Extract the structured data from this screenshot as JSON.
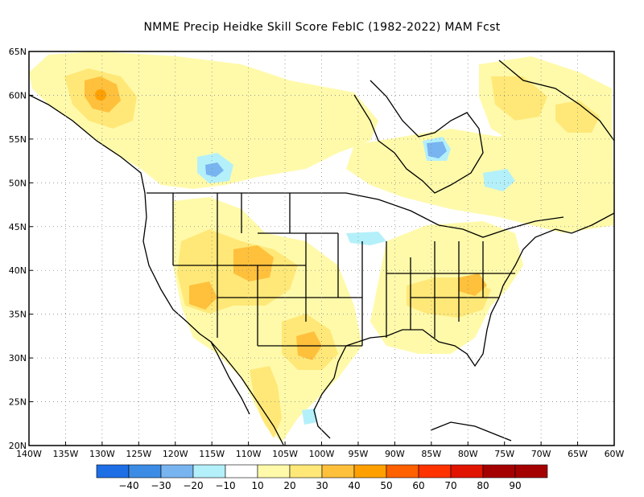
{
  "title": "NMME Precip Heidke Skill Score FebIC (1982-2022) MAM Fcst",
  "map": {
    "lon_range": [
      -140,
      -60
    ],
    "lat_range": [
      20,
      65
    ],
    "lon_ticks": [
      "140W",
      "135W",
      "130W",
      "125W",
      "120W",
      "115W",
      "110W",
      "105W",
      "100W",
      "95W",
      "90W",
      "85W",
      "80W",
      "75W",
      "70W",
      "65W",
      "60W"
    ],
    "lat_ticks": [
      "65N",
      "60N",
      "55N",
      "50N",
      "45N",
      "40N",
      "35N",
      "30N",
      "25N",
      "20N"
    ],
    "grid": "dotted"
  },
  "colorbar": {
    "labels": [
      "-40",
      "-30",
      "-20",
      "-10",
      "10",
      "20",
      "30",
      "40",
      "50",
      "60",
      "70",
      "80",
      "90"
    ],
    "colors": [
      "#1e6ee6",
      "#3c8ce6",
      "#78b4f0",
      "#b4f0fa",
      "#ffffff",
      "#fffaaa",
      "#ffe878",
      "#ffc03c",
      "#ffa000",
      "#ff6000",
      "#ff3200",
      "#e11400",
      "#a50000"
    ]
  },
  "skill_regions": [
    {
      "lon": -130,
      "lat": 59.8,
      "level": "40"
    },
    {
      "lon": -128,
      "lat": 59,
      "level": "30"
    },
    {
      "lon": -110,
      "lat": 39.5,
      "level": "40"
    },
    {
      "lon": -113,
      "lat": 36.5,
      "level": "40"
    },
    {
      "lon": -108,
      "lat": 38,
      "level": "30"
    },
    {
      "lon": -102,
      "lat": 30.5,
      "level": "30"
    },
    {
      "lon": -115,
      "lat": 51,
      "level": "-20"
    },
    {
      "lon": -83.5,
      "lat": 52.5,
      "level": "-20"
    },
    {
      "lon": -65,
      "lat": 57,
      "level": "30"
    },
    {
      "lon": -83,
      "lat": 36.5,
      "level": "20"
    }
  ]
}
